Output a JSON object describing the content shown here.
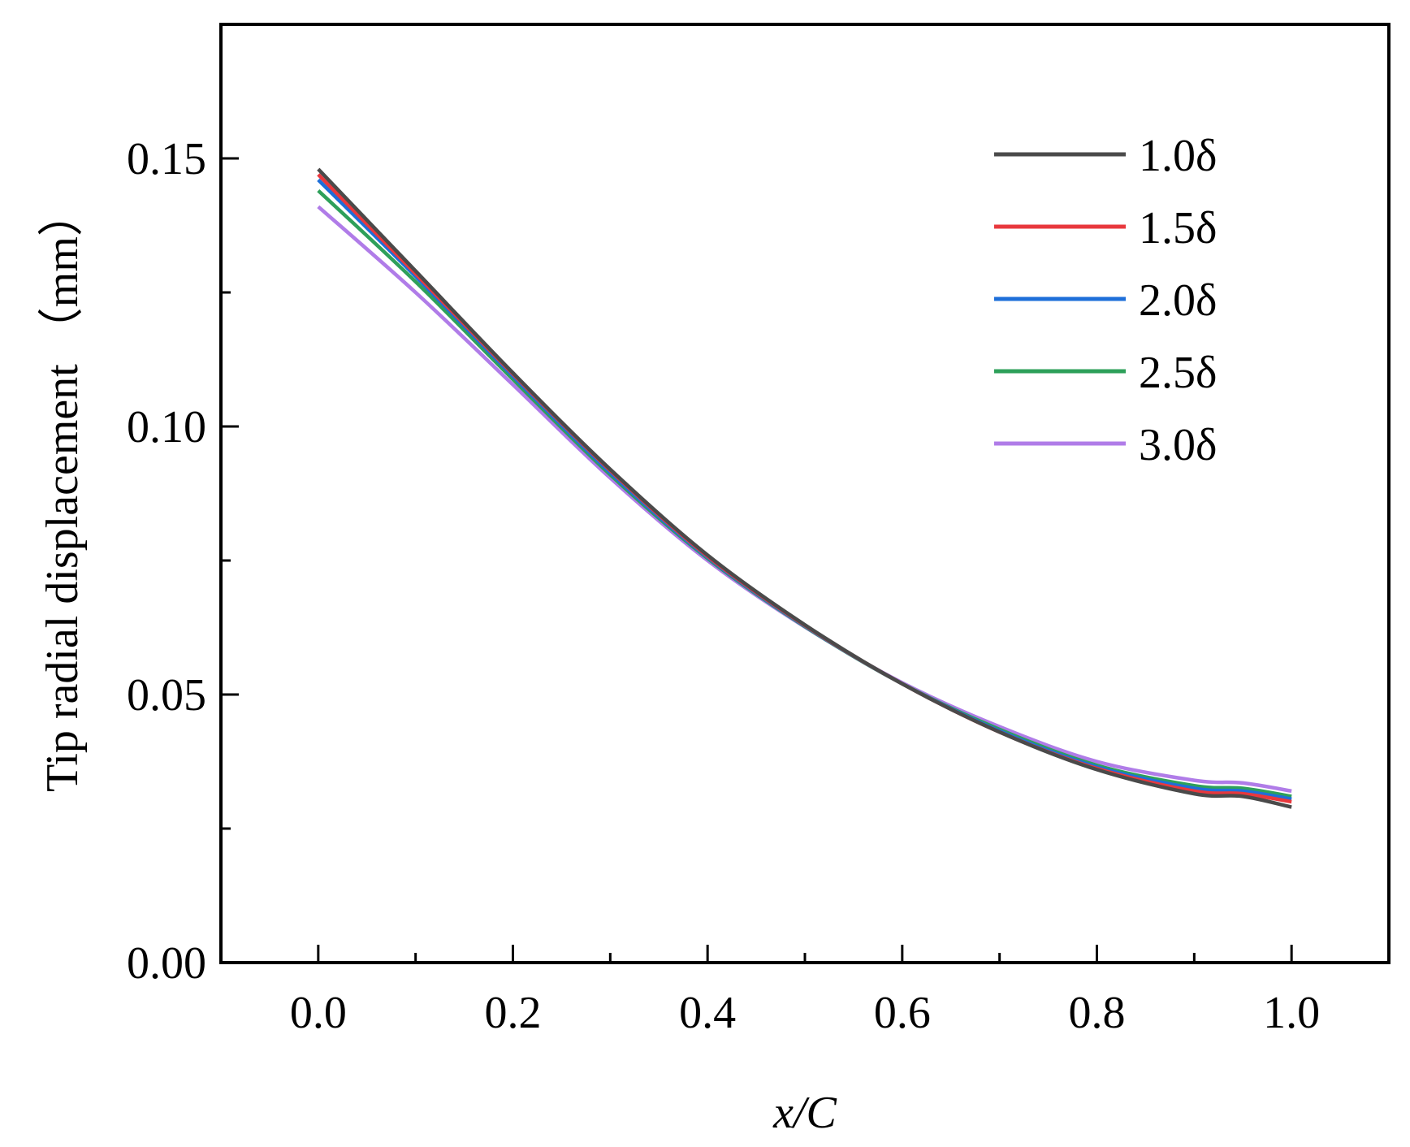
{
  "chart_data": {
    "type": "line",
    "xlabel": "x/C",
    "ylabel": "Tip radial displacement （mm）",
    "xlim": [
      -0.1,
      1.1
    ],
    "ylim": [
      0.0,
      0.175
    ],
    "x_ticks": [
      0.0,
      0.2,
      0.4,
      0.6,
      0.8,
      1.0
    ],
    "x_tick_labels": [
      "0.0",
      "0.2",
      "0.4",
      "0.6",
      "0.8",
      "1.0"
    ],
    "y_ticks": [
      0.0,
      0.05,
      0.1,
      0.15
    ],
    "y_tick_labels": [
      "0.00",
      "0.05",
      "0.10",
      "0.15"
    ],
    "grid": false,
    "legend_position": "top-right",
    "x": [
      0.0,
      0.1,
      0.2,
      0.3,
      0.4,
      0.5,
      0.6,
      0.7,
      0.8,
      0.9,
      0.95,
      1.0
    ],
    "series": [
      {
        "name": "1.0δ",
        "color": "#4a4a4a",
        "values": [
          0.148,
          0.129,
          0.11,
          0.092,
          0.076,
          0.063,
          0.052,
          0.043,
          0.036,
          0.0315,
          0.031,
          0.029
        ]
      },
      {
        "name": "1.5δ",
        "color": "#e8383d",
        "values": [
          0.147,
          0.1285,
          0.1098,
          0.0918,
          0.0758,
          0.0629,
          0.052,
          0.043,
          0.0362,
          0.032,
          0.0315,
          0.03
        ]
      },
      {
        "name": "2.0δ",
        "color": "#1e6fd9",
        "values": [
          0.146,
          0.128,
          0.1094,
          0.0914,
          0.0756,
          0.0628,
          0.052,
          0.0432,
          0.0365,
          0.0325,
          0.032,
          0.0305
        ]
      },
      {
        "name": "2.5δ",
        "color": "#2ea05a",
        "values": [
          0.144,
          0.127,
          0.1088,
          0.091,
          0.0754,
          0.0627,
          0.052,
          0.0435,
          0.0368,
          0.033,
          0.0325,
          0.031
        ]
      },
      {
        "name": "3.0δ",
        "color": "#b07ce8",
        "values": [
          0.141,
          0.125,
          0.1078,
          0.0904,
          0.075,
          0.0626,
          0.0522,
          0.044,
          0.0375,
          0.034,
          0.0335,
          0.032
        ]
      }
    ]
  }
}
